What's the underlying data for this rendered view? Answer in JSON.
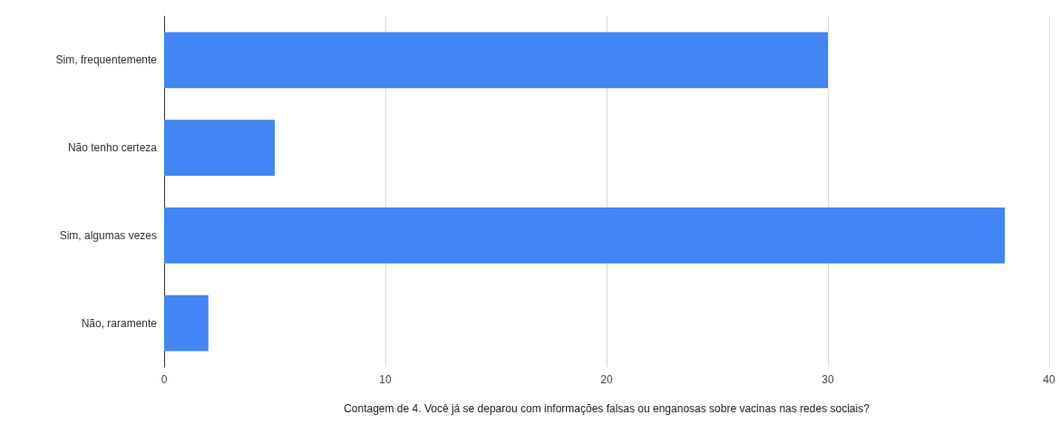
{
  "chart_data": {
    "type": "bar",
    "orientation": "horizontal",
    "xlabel": "Contagem de 4. Você já se deparou com informações falsas ou enganosas sobre vacinas nas redes sociais?",
    "categories": [
      "Sim, frequentemente",
      "Não tenho certeza",
      "Sim, algumas vezes",
      "Não, raramente"
    ],
    "values": [
      30,
      5,
      38,
      2
    ],
    "color": "#4285f4",
    "xlim": [
      0,
      40
    ],
    "xticks": [
      0,
      10,
      20,
      30,
      40
    ],
    "grid": "x"
  }
}
